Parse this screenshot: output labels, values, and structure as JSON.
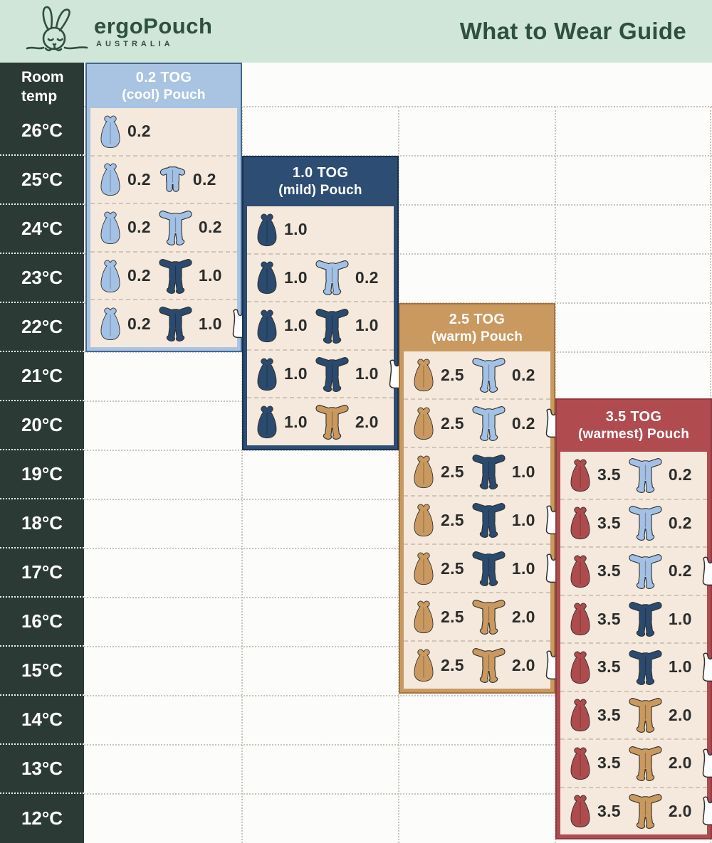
{
  "header": {
    "brand": "ergoPouch",
    "brand_sub": "AUSTRALIA",
    "title": "What to Wear Guide"
  },
  "temp_column": {
    "header_line1": "Room",
    "header_line2": "temp"
  },
  "colors": {
    "mint": "#cfe6d9",
    "dark_green": "#2f4f41",
    "temp_col_bg": "#2c3a36",
    "panel_body_cream": "#f4e9dc",
    "value_text": "#2b2c2c",
    "grid_dots": "#c9c4bd",
    "lightblue": "#a3c1e4",
    "navy": "#2b4a6e",
    "tan": "#c9995f",
    "red": "#ad4b4f",
    "singlet_white": "#ffffff"
  },
  "chart_data": {
    "type": "table",
    "title": "What to Wear Guide",
    "row_axis_label": "Room temp",
    "temperatures": [
      "26°C",
      "25°C",
      "24°C",
      "23°C",
      "22°C",
      "21°C",
      "20°C",
      "19°C",
      "18°C",
      "17°C",
      "16°C",
      "15°C",
      "14°C",
      "13°C",
      "12°C"
    ],
    "panels": [
      {
        "id": "tog-0-2",
        "title_line1": "0.2 TOG",
        "title_line2": "(cool) Pouch",
        "accent": "#a9c4e2",
        "outline": "#44678f",
        "pouch_color_key": "lightblue",
        "temps_covered": [
          "26°C",
          "25°C",
          "24°C",
          "23°C",
          "22°C"
        ],
        "rows": [
          {
            "temp": "26°C",
            "pouch_tog": "0.2",
            "suit": null,
            "suit_color_key": null,
            "suit_tog": null,
            "singlet": false
          },
          {
            "temp": "25°C",
            "pouch_tog": "0.2",
            "suit": "romper",
            "suit_color_key": "lightblue",
            "suit_tog": "0.2",
            "singlet": false
          },
          {
            "temp": "24°C",
            "pouch_tog": "0.2",
            "suit": "sleepsuit",
            "suit_color_key": "lightblue",
            "suit_tog": "0.2",
            "singlet": false
          },
          {
            "temp": "23°C",
            "pouch_tog": "0.2",
            "suit": "sleepsuit",
            "suit_color_key": "navy",
            "suit_tog": "1.0",
            "singlet": false
          },
          {
            "temp": "22°C",
            "pouch_tog": "0.2",
            "suit": "sleepsuit",
            "suit_color_key": "navy",
            "suit_tog": "1.0",
            "singlet": true
          }
        ]
      },
      {
        "id": "tog-1-0",
        "title_line1": "1.0 TOG",
        "title_line2": "(mild) Pouch",
        "accent": "#2d4d72",
        "outline": "#1a3350",
        "pouch_color_key": "navy",
        "temps_covered": [
          "24°C",
          "23°C",
          "22°C",
          "21°C",
          "20°C"
        ],
        "rows": [
          {
            "temp": "24°C",
            "pouch_tog": "1.0",
            "suit": null,
            "suit_color_key": null,
            "suit_tog": null,
            "singlet": false
          },
          {
            "temp": "23°C",
            "pouch_tog": "1.0",
            "suit": "sleepsuit",
            "suit_color_key": "lightblue",
            "suit_tog": "0.2",
            "singlet": false
          },
          {
            "temp": "22°C",
            "pouch_tog": "1.0",
            "suit": "sleepsuit",
            "suit_color_key": "navy",
            "suit_tog": "1.0",
            "singlet": false
          },
          {
            "temp": "21°C",
            "pouch_tog": "1.0",
            "suit": "sleepsuit",
            "suit_color_key": "navy",
            "suit_tog": "1.0",
            "singlet": true
          },
          {
            "temp": "20°C",
            "pouch_tog": "1.0",
            "suit": "sleepsuit",
            "suit_color_key": "tan",
            "suit_tog": "2.0",
            "singlet": false
          }
        ]
      },
      {
        "id": "tog-2-5",
        "title_line1": "2.5 TOG",
        "title_line2": "(warm) Pouch",
        "accent": "#c9995f",
        "outline": "#a2743c",
        "pouch_color_key": "tan",
        "temps_covered": [
          "21°C",
          "20°C",
          "19°C",
          "18°C",
          "17°C",
          "16°C",
          "15°C"
        ],
        "rows": [
          {
            "temp": "21°C",
            "pouch_tog": "2.5",
            "suit": "sleepsuit",
            "suit_color_key": "lightblue",
            "suit_tog": "0.2",
            "singlet": false
          },
          {
            "temp": "20°C",
            "pouch_tog": "2.5",
            "suit": "sleepsuit",
            "suit_color_key": "lightblue",
            "suit_tog": "0.2",
            "singlet": true
          },
          {
            "temp": "19°C",
            "pouch_tog": "2.5",
            "suit": "sleepsuit",
            "suit_color_key": "navy",
            "suit_tog": "1.0",
            "singlet": false
          },
          {
            "temp": "18°C",
            "pouch_tog": "2.5",
            "suit": "sleepsuit",
            "suit_color_key": "navy",
            "suit_tog": "1.0",
            "singlet": true
          },
          {
            "temp": "17°C",
            "pouch_tog": "2.5",
            "suit": "sleepsuit",
            "suit_color_key": "navy",
            "suit_tog": "1.0",
            "singlet": true
          },
          {
            "temp": "16°C",
            "pouch_tog": "2.5",
            "suit": "sleepsuit",
            "suit_color_key": "tan",
            "suit_tog": "2.0",
            "singlet": false
          },
          {
            "temp": "15°C",
            "pouch_tog": "2.5",
            "suit": "sleepsuit",
            "suit_color_key": "tan",
            "suit_tog": "2.0",
            "singlet": true
          }
        ]
      },
      {
        "id": "tog-3-5",
        "title_line1": "3.5 TOG",
        "title_line2": "(warmest) Pouch",
        "accent": "#b04c4f",
        "outline": "#8e3a40",
        "pouch_color_key": "red",
        "temps_covered": [
          "19°C",
          "18°C",
          "17°C",
          "16°C",
          "15°C",
          "14°C",
          "13°C",
          "12°C"
        ],
        "rows": [
          {
            "temp": "19°C",
            "pouch_tog": "3.5",
            "suit": "sleepsuit",
            "suit_color_key": "lightblue",
            "suit_tog": "0.2",
            "singlet": false
          },
          {
            "temp": "18°C",
            "pouch_tog": "3.5",
            "suit": "sleepsuit",
            "suit_color_key": "lightblue",
            "suit_tog": "0.2",
            "singlet": false
          },
          {
            "temp": "17°C",
            "pouch_tog": "3.5",
            "suit": "sleepsuit",
            "suit_color_key": "lightblue",
            "suit_tog": "0.2",
            "singlet": true
          },
          {
            "temp": "16°C",
            "pouch_tog": "3.5",
            "suit": "sleepsuit",
            "suit_color_key": "navy",
            "suit_tog": "1.0",
            "singlet": false
          },
          {
            "temp": "15°C",
            "pouch_tog": "3.5",
            "suit": "sleepsuit",
            "suit_color_key": "navy",
            "suit_tog": "1.0",
            "singlet": true
          },
          {
            "temp": "14°C",
            "pouch_tog": "3.5",
            "suit": "sleepsuit",
            "suit_color_key": "tan",
            "suit_tog": "2.0",
            "singlet": false
          },
          {
            "temp": "13°C",
            "pouch_tog": "3.5",
            "suit": "sleepsuit",
            "suit_color_key": "tan",
            "suit_tog": "2.0",
            "singlet": true
          },
          {
            "temp": "12°C",
            "pouch_tog": "3.5",
            "suit": "sleepsuit",
            "suit_color_key": "tan",
            "suit_tog": "2.0",
            "singlet": true
          }
        ]
      }
    ]
  }
}
